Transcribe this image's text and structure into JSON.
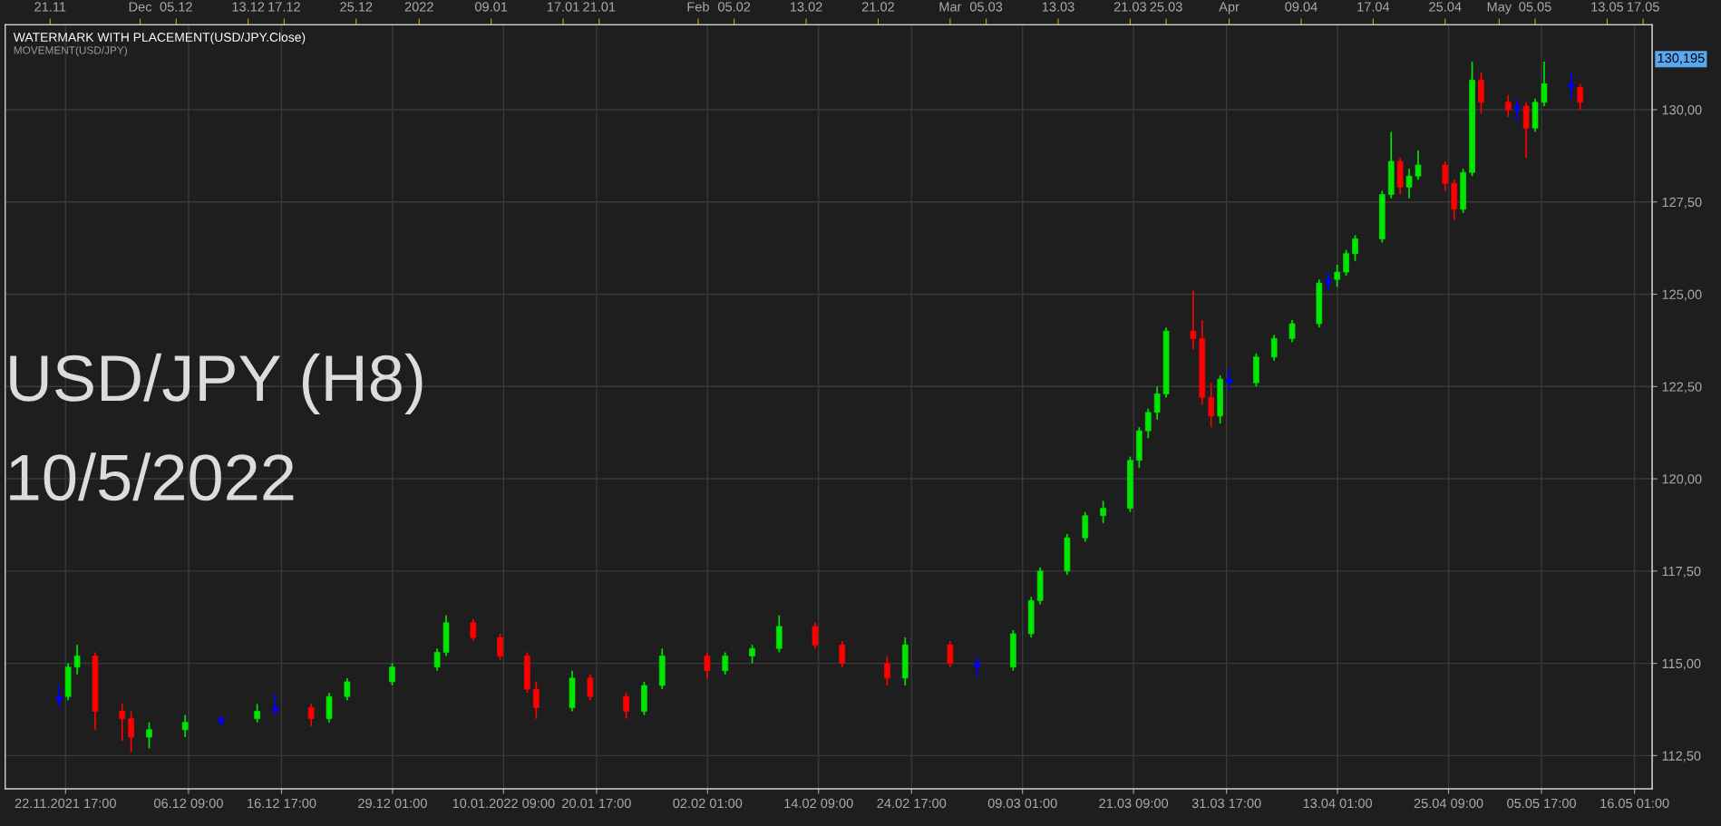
{
  "chart_data": {
    "type": "candlestick",
    "x": [
      "2021-11-22",
      "2021-11-23",
      "2021-11-24",
      "2021-11-26",
      "2021-11-29",
      "2021-11-30",
      "2021-12-02",
      "2021-12-06",
      "2021-12-10",
      "2021-12-14",
      "2021-12-16",
      "2021-12-20",
      "2021-12-22",
      "2021-12-24",
      "2021-12-29",
      "2022-01-03",
      "2022-01-04",
      "2022-01-07",
      "2022-01-10",
      "2022-01-13",
      "2022-01-14",
      "2022-01-18",
      "2022-01-20",
      "2022-01-24",
      "2022-01-26",
      "2022-01-28",
      "2022-02-02",
      "2022-02-04",
      "2022-02-07",
      "2022-02-10",
      "2022-02-14",
      "2022-02-17",
      "2022-02-22",
      "2022-02-24",
      "2022-03-01",
      "2022-03-04",
      "2022-03-08",
      "2022-03-10",
      "2022-03-11",
      "2022-03-14",
      "2022-03-16",
      "2022-03-18",
      "2022-03-21",
      "2022-03-22",
      "2022-03-23",
      "2022-03-24",
      "2022-03-25",
      "2022-03-28",
      "2022-03-29",
      "2022-03-30",
      "2022-03-31",
      "2022-04-01",
      "2022-04-04",
      "2022-04-06",
      "2022-04-08",
      "2022-04-11",
      "2022-04-12",
      "2022-04-13",
      "2022-04-14",
      "2022-04-15",
      "2022-04-18",
      "2022-04-19",
      "2022-04-20",
      "2022-04-21",
      "2022-04-22",
      "2022-04-25",
      "2022-04-26",
      "2022-04-27",
      "2022-04-28",
      "2022-04-29",
      "2022-05-02",
      "2022-05-03",
      "2022-05-04",
      "2022-05-05",
      "2022-05-06",
      "2022-05-09",
      "2022-05-10"
    ],
    "ohlc": [
      [
        114.0,
        114.4,
        113.8,
        114.1
      ],
      [
        114.1,
        115.0,
        114.0,
        114.9
      ],
      [
        114.9,
        115.5,
        114.7,
        115.2
      ],
      [
        115.2,
        115.3,
        113.2,
        113.7
      ],
      [
        113.7,
        113.9,
        112.9,
        113.5
      ],
      [
        113.5,
        113.7,
        112.6,
        113.0
      ],
      [
        113.0,
        113.4,
        112.7,
        113.2
      ],
      [
        113.2,
        113.6,
        113.0,
        113.4
      ],
      [
        113.4,
        113.6,
        113.3,
        113.5
      ],
      [
        113.5,
        113.9,
        113.4,
        113.7
      ],
      [
        113.7,
        114.2,
        113.6,
        113.8
      ],
      [
        113.8,
        113.9,
        113.3,
        113.5
      ],
      [
        113.5,
        114.2,
        113.4,
        114.1
      ],
      [
        114.1,
        114.6,
        114.0,
        114.5
      ],
      [
        114.5,
        115.0,
        114.4,
        114.9
      ],
      [
        114.9,
        115.4,
        114.8,
        115.3
      ],
      [
        115.3,
        116.3,
        115.2,
        116.1
      ],
      [
        116.1,
        116.2,
        115.6,
        115.7
      ],
      [
        115.7,
        115.8,
        115.1,
        115.2
      ],
      [
        115.2,
        115.3,
        114.2,
        114.3
      ],
      [
        114.3,
        114.5,
        113.5,
        113.8
      ],
      [
        113.8,
        114.8,
        113.7,
        114.6
      ],
      [
        114.6,
        114.7,
        114.0,
        114.1
      ],
      [
        114.1,
        114.2,
        113.5,
        113.7
      ],
      [
        113.7,
        114.5,
        113.6,
        114.4
      ],
      [
        114.4,
        115.4,
        114.3,
        115.2
      ],
      [
        115.2,
        115.3,
        114.6,
        114.8
      ],
      [
        114.8,
        115.3,
        114.7,
        115.2
      ],
      [
        115.2,
        115.5,
        115.0,
        115.4
      ],
      [
        115.4,
        116.3,
        115.3,
        116.0
      ],
      [
        116.0,
        116.1,
        115.4,
        115.5
      ],
      [
        115.5,
        115.6,
        114.9,
        115.0
      ],
      [
        115.0,
        115.2,
        114.4,
        114.6
      ],
      [
        114.6,
        115.7,
        114.4,
        115.5
      ],
      [
        115.5,
        115.6,
        114.9,
        115.0
      ],
      [
        115.0,
        115.2,
        114.6,
        114.9
      ],
      [
        114.9,
        115.9,
        114.8,
        115.8
      ],
      [
        115.8,
        116.8,
        115.7,
        116.7
      ],
      [
        116.7,
        117.6,
        116.6,
        117.5
      ],
      [
        117.5,
        118.5,
        117.4,
        118.4
      ],
      [
        118.4,
        119.1,
        118.3,
        119.0
      ],
      [
        119.0,
        119.4,
        118.8,
        119.2
      ],
      [
        119.2,
        120.6,
        119.1,
        120.5
      ],
      [
        120.5,
        121.4,
        120.3,
        121.3
      ],
      [
        121.3,
        121.9,
        121.1,
        121.8
      ],
      [
        121.8,
        122.5,
        121.6,
        122.3
      ],
      [
        122.3,
        124.1,
        122.2,
        124.0
      ],
      [
        124.0,
        125.1,
        123.5,
        123.8
      ],
      [
        123.8,
        124.3,
        122.0,
        122.2
      ],
      [
        122.2,
        122.6,
        121.4,
        121.7
      ],
      [
        121.7,
        122.8,
        121.5,
        122.7
      ],
      [
        122.7,
        123.0,
        122.4,
        122.6
      ],
      [
        122.6,
        123.4,
        122.5,
        123.3
      ],
      [
        123.3,
        123.9,
        123.2,
        123.8
      ],
      [
        123.8,
        124.3,
        123.7,
        124.2
      ],
      [
        124.2,
        125.4,
        124.1,
        125.3
      ],
      [
        125.3,
        125.6,
        125.1,
        125.4
      ],
      [
        125.4,
        125.8,
        125.2,
        125.6
      ],
      [
        125.6,
        126.2,
        125.5,
        126.1
      ],
      [
        126.1,
        126.6,
        125.9,
        126.5
      ],
      [
        126.5,
        127.8,
        126.4,
        127.7
      ],
      [
        127.7,
        129.4,
        127.6,
        128.6
      ],
      [
        128.6,
        128.7,
        127.7,
        127.9
      ],
      [
        127.9,
        128.4,
        127.6,
        128.2
      ],
      [
        128.2,
        128.9,
        128.1,
        128.5
      ],
      [
        128.5,
        128.6,
        127.8,
        128.0
      ],
      [
        128.0,
        128.1,
        127.0,
        127.3
      ],
      [
        127.3,
        128.4,
        127.2,
        128.3
      ],
      [
        128.3,
        131.3,
        128.2,
        130.8
      ],
      [
        130.8,
        131.0,
        129.9,
        130.2
      ],
      [
        130.2,
        130.4,
        129.8,
        130.0
      ],
      [
        130.0,
        130.3,
        129.7,
        130.1
      ],
      [
        130.1,
        130.2,
        128.7,
        129.5
      ],
      [
        129.5,
        130.3,
        129.4,
        130.2
      ],
      [
        130.2,
        131.3,
        130.1,
        130.7
      ],
      [
        130.7,
        131.0,
        130.3,
        130.6
      ],
      [
        130.6,
        130.7,
        130.0,
        130.2
      ]
    ],
    "colors": [
      "#0000ff",
      "#00e600",
      "#00e600",
      "#ff0000",
      "#ff0000",
      "#ff0000",
      "#00e600",
      "#00e600",
      "#0000ff",
      "#00e600",
      "#0000ff",
      "#ff0000",
      "#00e600",
      "#00e600",
      "#00e600",
      "#00e600",
      "#00e600",
      "#ff0000",
      "#ff0000",
      "#ff0000",
      "#ff0000",
      "#00e600",
      "#ff0000",
      "#ff0000",
      "#00e600",
      "#00e600",
      "#ff0000",
      "#00e600",
      "#00e600",
      "#00e600",
      "#ff0000",
      "#ff0000",
      "#ff0000",
      "#00e600",
      "#ff0000",
      "#0000ff",
      "#00e600",
      "#00e600",
      "#00e600",
      "#00e600",
      "#00e600",
      "#00e600",
      "#00e600",
      "#00e600",
      "#00e600",
      "#00e600",
      "#00e600",
      "#ff0000",
      "#ff0000",
      "#ff0000",
      "#00e600",
      "#0000ff",
      "#00e600",
      "#00e600",
      "#00e600",
      "#00e600",
      "#0000ff",
      "#00e600",
      "#00e600",
      "#00e600",
      "#00e600",
      "#00e600",
      "#ff0000",
      "#00e600",
      "#00e600",
      "#ff0000",
      "#ff0000",
      "#00e600",
      "#00e600",
      "#ff0000",
      "#ff0000",
      "#0000ff",
      "#ff0000",
      "#00e600",
      "#00e600",
      "#0000ff",
      "#ff0000"
    ],
    "xlim": [
      "2021-11-16",
      "2022-05-18"
    ],
    "ylim": [
      111.6,
      132.3
    ],
    "yticks": [
      {
        "value": 112.5,
        "label": "112,50"
      },
      {
        "value": 115,
        "label": "115,00"
      },
      {
        "value": 117.5,
        "label": "117,50"
      },
      {
        "value": 120,
        "label": "120,00"
      },
      {
        "value": 122.5,
        "label": "122,50"
      },
      {
        "value": 125,
        "label": "125,00"
      },
      {
        "value": 127.5,
        "label": "127,50"
      },
      {
        "value": 130,
        "label": "130,00"
      }
    ],
    "xticks": [
      {
        "value": "2021-11-22T17:00",
        "label": "22.11.2021 17:00"
      },
      {
        "value": "2021-12-06T09:00",
        "label": "06.12 09:00"
      },
      {
        "value": "2021-12-16T17:00",
        "label": "16.12 17:00"
      },
      {
        "value": "2021-12-29T01:00",
        "label": "29.12 01:00"
      },
      {
        "value": "2022-01-10T09:00",
        "label": "10.01.2022 09:00"
      },
      {
        "value": "2022-01-20T17:00",
        "label": "20.01 17:00"
      },
      {
        "value": "2022-02-02T01:00",
        "label": "02.02 01:00"
      },
      {
        "value": "2022-02-14T09:00",
        "label": "14.02 09:00"
      },
      {
        "value": "2022-02-24T17:00",
        "label": "24.02 17:00"
      },
      {
        "value": "2022-03-09T01:00",
        "label": "09.03 01:00"
      },
      {
        "value": "2022-03-21T09:00",
        "label": "21.03 09:00"
      },
      {
        "value": "2022-03-31T17:00",
        "label": "31.03 17:00"
      },
      {
        "value": "2022-04-13T01:00",
        "label": "13.04 01:00"
      },
      {
        "value": "2022-04-25T09:00",
        "label": "25.04 09:00"
      },
      {
        "value": "2022-05-05T17:00",
        "label": "05.05 17:00"
      },
      {
        "value": "2022-05-16T01:00",
        "label": "16.05 01:00"
      }
    ],
    "x2ticks": [
      {
        "value": "2021-11-21",
        "label": "21.11"
      },
      {
        "value": "2021-12-01",
        "label": "Dec"
      },
      {
        "value": "2021-12-05",
        "label": "05.12"
      },
      {
        "value": "2021-12-13",
        "label": "13.12"
      },
      {
        "value": "2021-12-17",
        "label": "17.12"
      },
      {
        "value": "2021-12-25",
        "label": "25.12"
      },
      {
        "value": "2022-01-01",
        "label": "2022"
      },
      {
        "value": "2022-01-09",
        "label": "09.01"
      },
      {
        "value": "2022-01-17",
        "label": "17.01"
      },
      {
        "value": "2022-01-21",
        "label": "21.01"
      },
      {
        "value": "2022-02-01",
        "label": "Feb"
      },
      {
        "value": "2022-02-05",
        "label": "05.02"
      },
      {
        "value": "2022-02-13",
        "label": "13.02"
      },
      {
        "value": "2022-02-21",
        "label": "21.02"
      },
      {
        "value": "2022-03-01",
        "label": "Mar"
      },
      {
        "value": "2022-03-05",
        "label": "05.03"
      },
      {
        "value": "2022-03-13",
        "label": "13.03"
      },
      {
        "value": "2022-03-21",
        "label": "21.03"
      },
      {
        "value": "2022-03-25",
        "label": "25.03"
      },
      {
        "value": "2022-04-01",
        "label": "Apr"
      },
      {
        "value": "2022-04-09",
        "label": "09.04"
      },
      {
        "value": "2022-04-17",
        "label": "17.04"
      },
      {
        "value": "2022-04-25",
        "label": "25.04"
      },
      {
        "value": "2022-05-01",
        "label": "May"
      },
      {
        "value": "2022-05-05",
        "label": "05.05"
      },
      {
        "value": "2022-05-13",
        "label": "13.05"
      },
      {
        "value": "2022-05-17",
        "label": "17.05"
      }
    ],
    "x2lim": [
      "2021-11-16",
      "2022-05-18"
    ],
    "grid": true,
    "annotations": [
      "WATERMARK WITH PLACEMENT(USD/JPY.Close)",
      "MOVEMENT(USD/JPY)",
      "USD/JPY (H8)",
      "10/5/2022",
      "130,195"
    ]
  }
}
